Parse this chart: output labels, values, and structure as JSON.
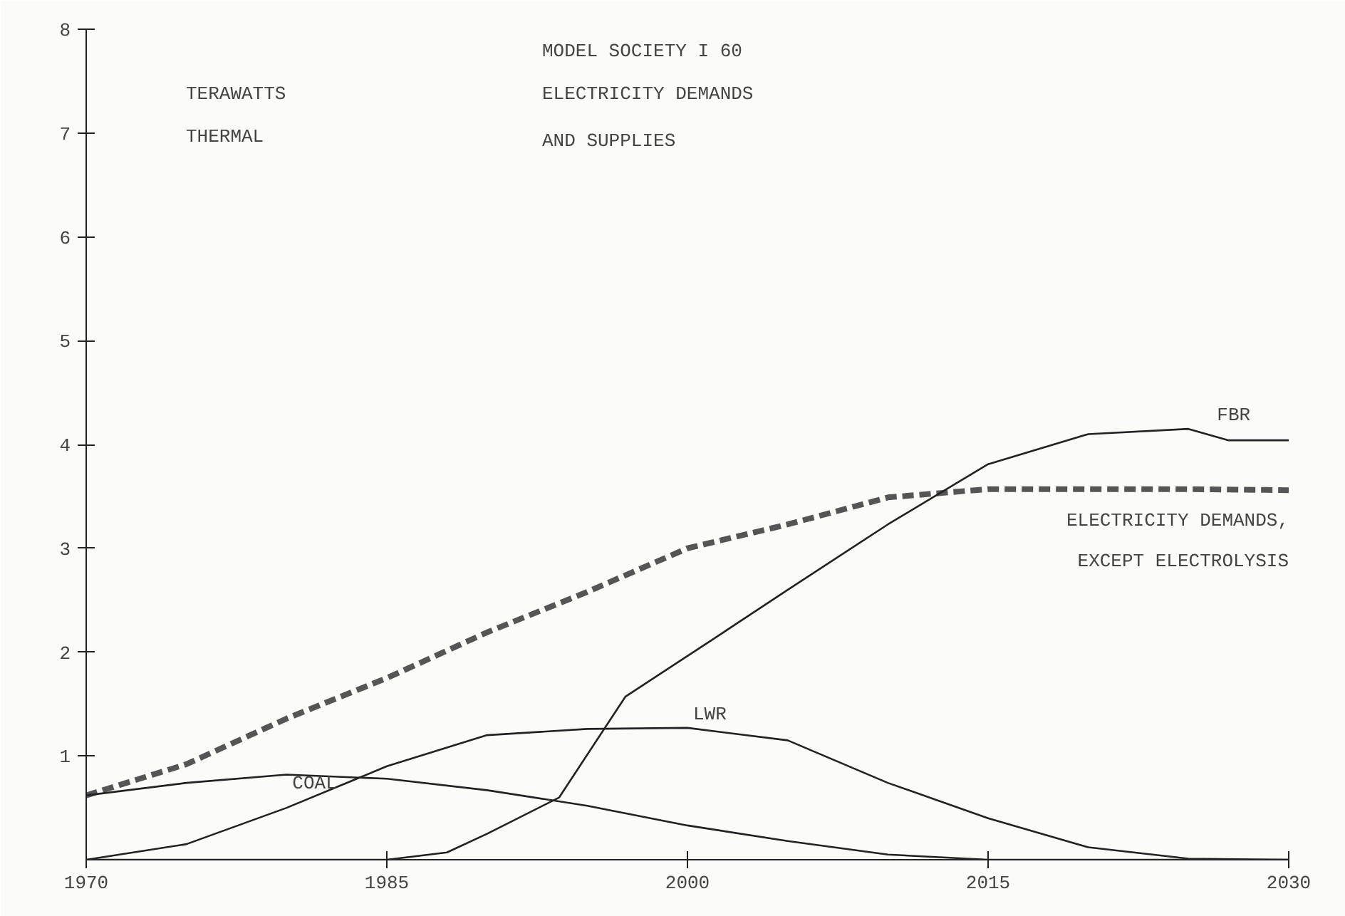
{
  "chart_data": {
    "type": "line",
    "title": "MODEL SOCIETY I 60",
    "subtitle": "ELECTRICITY DEMANDS\nAND SUPPLIES",
    "ylabel": "TERAWATTS",
    "annotations": [
      "THERMAL"
    ],
    "xlim": [
      1970,
      2030
    ],
    "xticks": [
      1970,
      1985,
      2000,
      2015,
      2030
    ],
    "ylim": [
      0,
      8
    ],
    "yticks": [
      1,
      2,
      3,
      4,
      5,
      6,
      7,
      8
    ],
    "grid": false,
    "series": [
      {
        "name": "ELECTRICITY DEMANDS,\nEXCEPT ELECTROLYSIS",
        "color": "#555555",
        "line_style": "dashed",
        "x": [
          1970,
          1975,
          1980,
          1985,
          1990,
          1995,
          2000,
          2005,
          2010,
          2015,
          2020,
          2025,
          2030
        ],
        "values": [
          0.62,
          0.92,
          1.36,
          1.75,
          2.19,
          2.58,
          3.0,
          3.23,
          3.49,
          3.57,
          3.57,
          3.57,
          3.56
        ]
      },
      {
        "name": "COAL",
        "color": "#222222",
        "line_style": "solid",
        "x": [
          1970,
          1975,
          1980,
          1985,
          1990,
          1995,
          2000,
          2005,
          2010,
          2015,
          2020,
          2025,
          2030
        ],
        "values": [
          0.62,
          0.74,
          0.82,
          0.78,
          0.67,
          0.52,
          0.33,
          0.18,
          0.05,
          0,
          0,
          0,
          0
        ]
      },
      {
        "name": "LWR",
        "color": "#222222",
        "line_style": "solid",
        "x": [
          1970,
          1975,
          1980,
          1985,
          1990,
          1995,
          2000,
          2005,
          2010,
          2015,
          2020,
          2025,
          2030
        ],
        "values": [
          0,
          0.15,
          0.5,
          0.9,
          1.2,
          1.26,
          1.27,
          1.15,
          0.74,
          0.4,
          0.12,
          0.01,
          0
        ]
      },
      {
        "name": "FBR",
        "color": "#222222",
        "line_style": "solid",
        "x": [
          1970,
          1985,
          1988,
          1990,
          1993.6,
          1996.9,
          2001.4,
          2005,
          2010,
          2015,
          2020,
          2025,
          2027,
          2030
        ],
        "values": [
          0,
          0,
          0.07,
          0.25,
          0.6,
          1.57,
          2.14,
          2.6,
          3.23,
          3.81,
          4.1,
          4.15,
          4.04,
          4.04
        ]
      }
    ]
  }
}
